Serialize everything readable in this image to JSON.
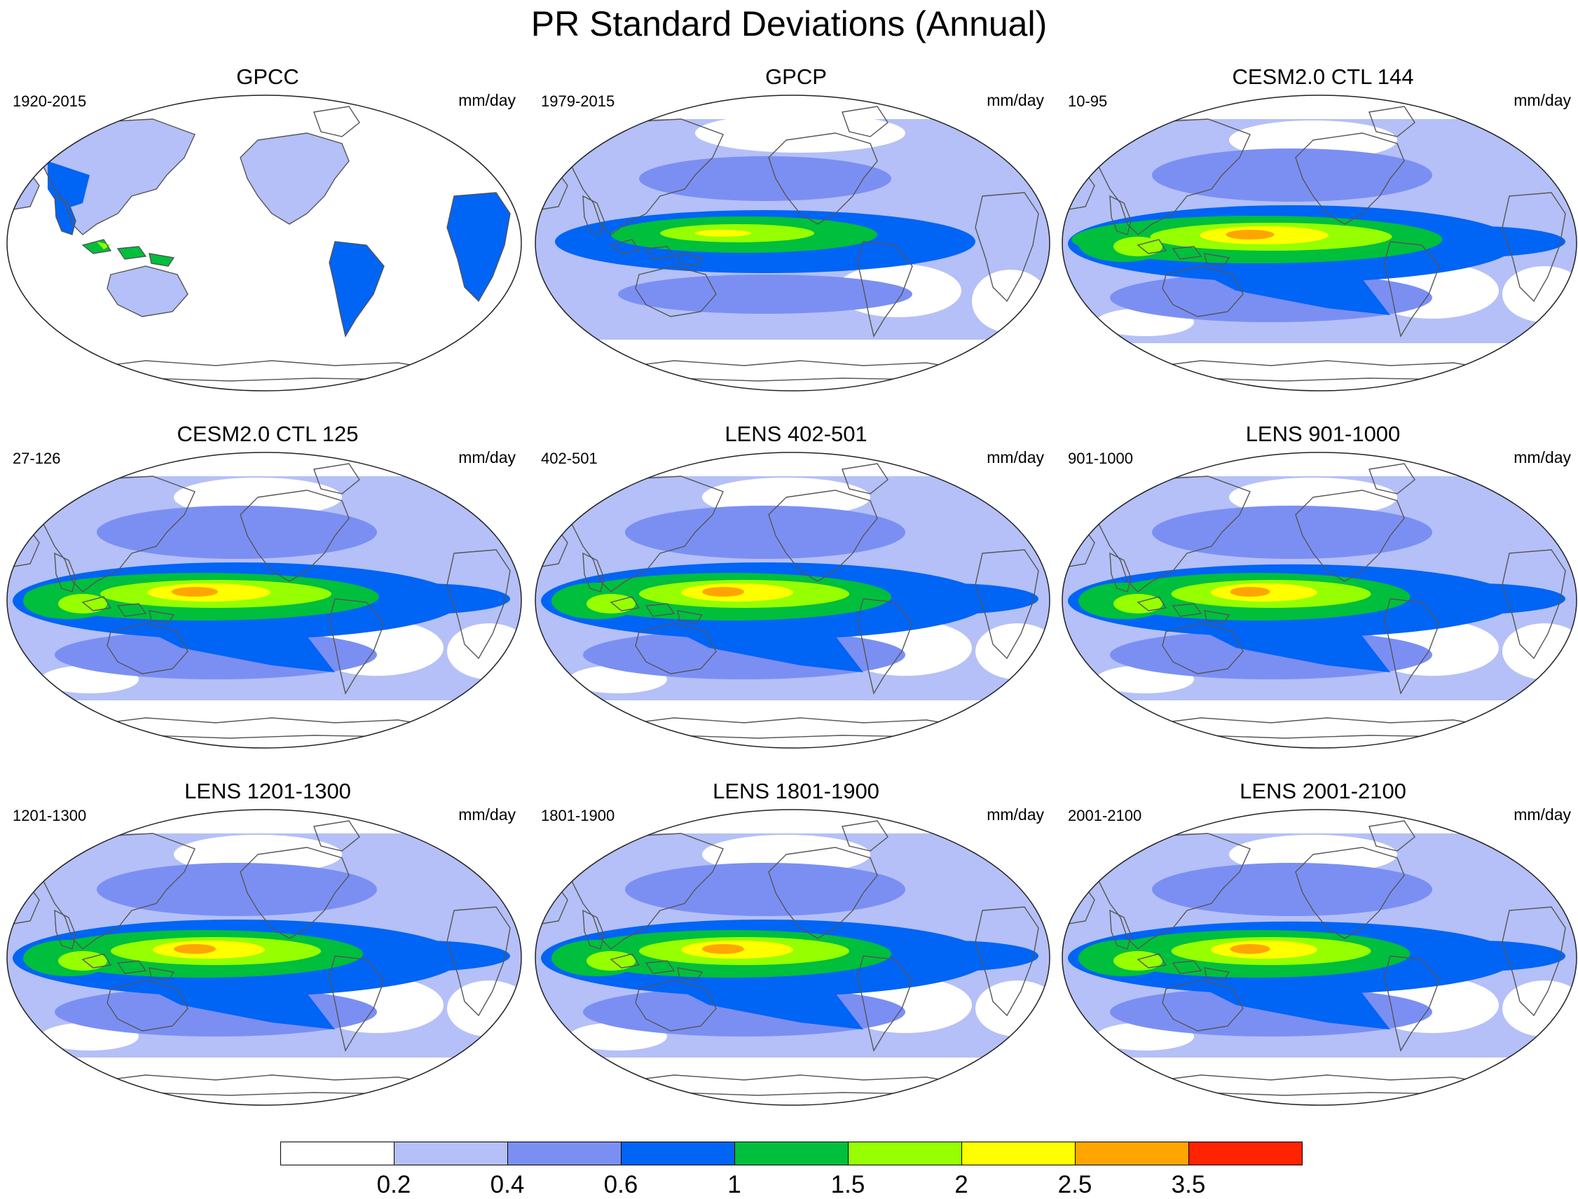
{
  "title": "PR Standard Deviations (Annual)",
  "units": "mm/day",
  "panels": [
    {
      "title": "GPCC",
      "period": "1920-2015",
      "type": "obs-land"
    },
    {
      "title": "GPCP",
      "period": "1979-2015",
      "type": "obs-global"
    },
    {
      "title": "CESM2.0 CTL 144",
      "period": "10-95",
      "type": "model",
      "intensity": 1.15
    },
    {
      "title": "CESM2.0 CTL 125",
      "period": "27-126",
      "type": "model",
      "intensity": 1.1
    },
    {
      "title": "LENS 402-501",
      "period": "402-501",
      "type": "model",
      "intensity": 1.0
    },
    {
      "title": "LENS 901-1000",
      "period": "901-1000",
      "type": "model",
      "intensity": 0.95
    },
    {
      "title": "LENS 1201-1300",
      "period": "1201-1300",
      "type": "model",
      "intensity": 1.0
    },
    {
      "title": "LENS 1801-1900",
      "period": "1801-1900",
      "type": "model",
      "intensity": 1.0
    },
    {
      "title": "LENS 2001-2100",
      "period": "2001-2100",
      "type": "model",
      "intensity": 0.95
    }
  ],
  "colorbar": {
    "levels": [
      "0.2",
      "0.4",
      "0.6",
      "1",
      "1.5",
      "2",
      "2.5",
      "3.5"
    ],
    "colors": [
      "#ffffff",
      "#b4c0f7",
      "#7b8ff3",
      "#0064f5",
      "#00bf3c",
      "#96ff00",
      "#ffff00",
      "#ffa500",
      "#ff2300"
    ]
  }
}
